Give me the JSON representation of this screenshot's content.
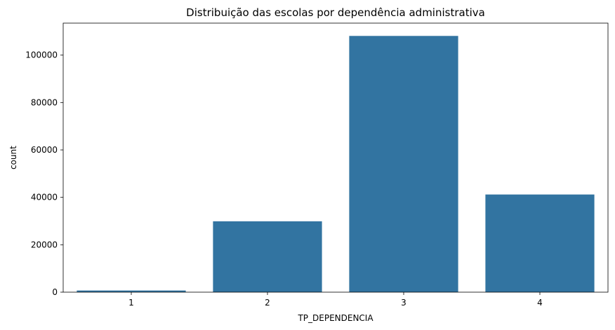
{
  "chart_data": {
    "type": "bar",
    "title": "Distribuição das escolas por dependência administrativa",
    "xlabel": "TP_DEPENDENCIA",
    "ylabel": "count",
    "categories": [
      "1",
      "2",
      "3",
      "4"
    ],
    "values": [
      700,
      29900,
      108100,
      41200
    ],
    "ylim": [
      0,
      113500
    ],
    "yticks": [
      0,
      20000,
      40000,
      60000,
      80000,
      100000
    ],
    "ytick_labels": [
      "0",
      "20000",
      "40000",
      "60000",
      "80000",
      "100000"
    ],
    "bar_color": "#3274a1",
    "grid": false,
    "legend": "none"
  }
}
